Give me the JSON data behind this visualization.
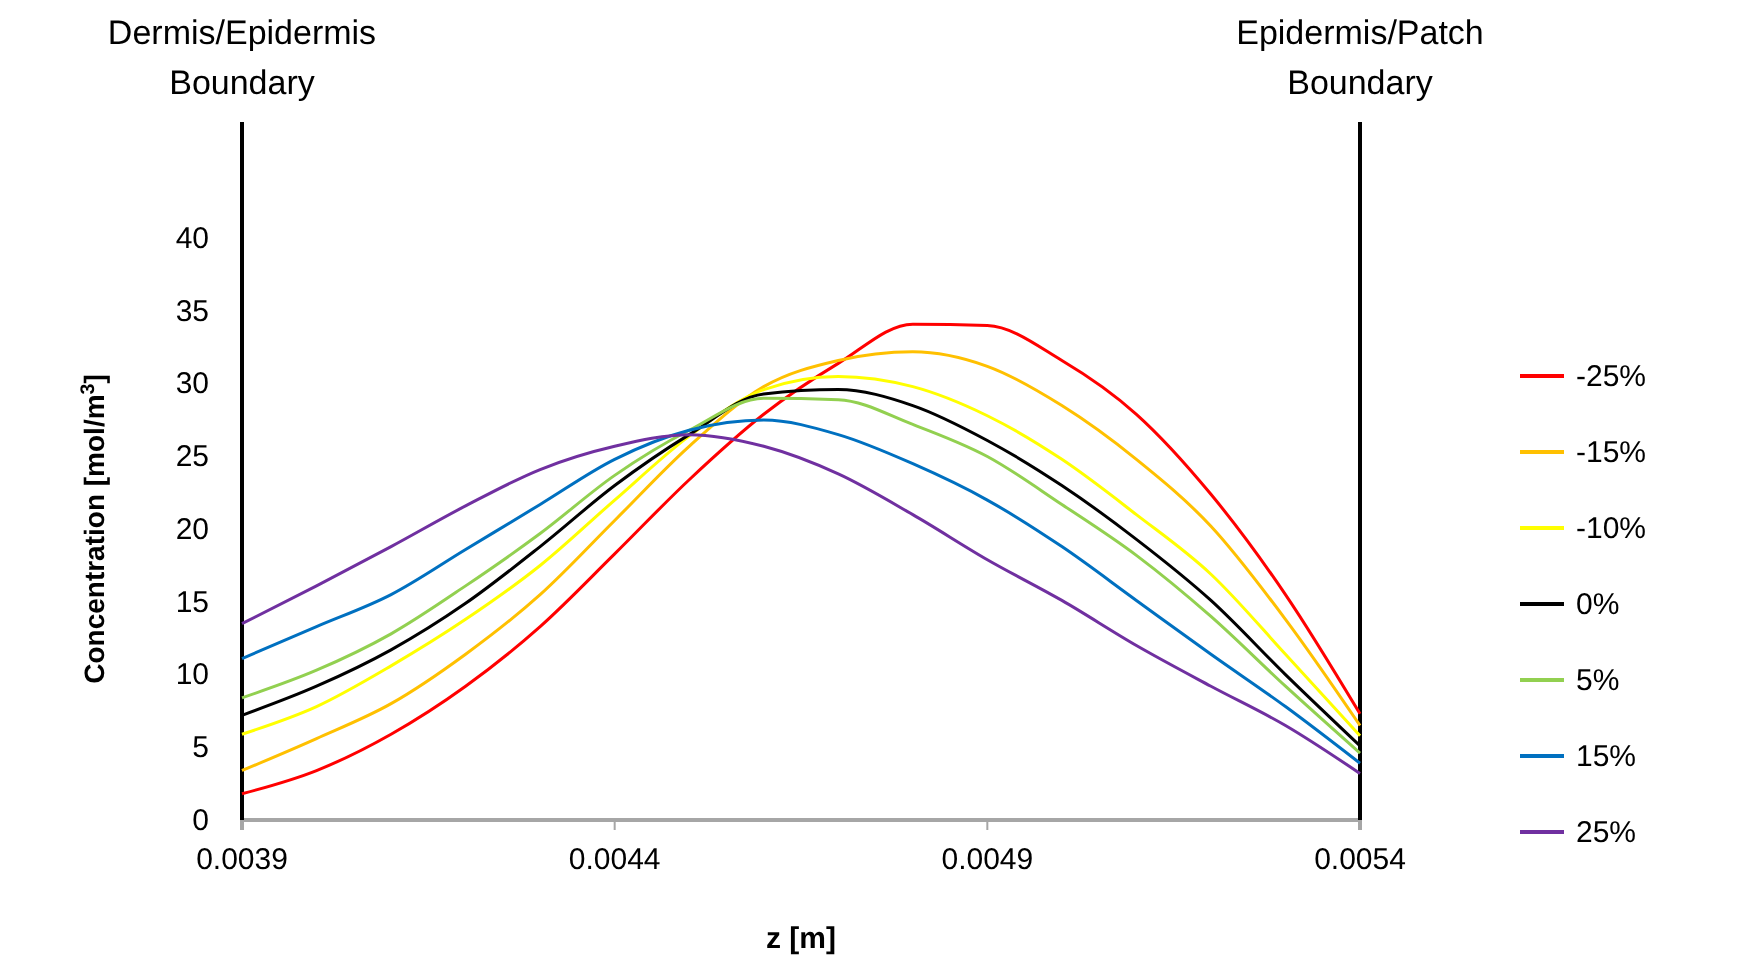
{
  "chart_data": {
    "type": "line",
    "xlabel": "z [m]",
    "ylabel": "Concentration [mol/m$^{3}$]",
    "x": [
      0.0039,
      0.004,
      0.0041,
      0.0042,
      0.0043,
      0.0044,
      0.0045,
      0.0046,
      0.0047,
      0.0048,
      0.0049,
      0.005,
      0.0051,
      0.0052,
      0.0053,
      0.0054
    ],
    "xlim": [
      0.0039,
      0.0054
    ],
    "xticks": [
      0.0039,
      0.0044,
      0.0049,
      0.0054
    ],
    "ylim": [
      0,
      48
    ],
    "yticks": [
      0,
      5,
      10,
      15,
      20,
      25,
      30,
      35,
      40
    ],
    "grid": false,
    "legend": "right",
    "marker": "none",
    "line_style": "solid",
    "annotations": [
      "Dermis/Epidermis Boundary"
    ],
    "ref_lines": [
      {
        "axis": "x",
        "value": 0.0054,
        "label": "Epidermis/Patch Boundary",
        "color": "#000000"
      }
    ],
    "series": [
      {
        "name": "-25%",
        "color": "#ff0000",
        "values": [
          1.8,
          3.4,
          5.9,
          9.2,
          13.3,
          18.3,
          23.4,
          27.9,
          31.4,
          34.1,
          34.0,
          31.6,
          27.9,
          22.4,
          15.5,
          7.3
        ]
      },
      {
        "name": "-15%",
        "color": "#ffc000",
        "values": [
          3.4,
          5.6,
          8.0,
          11.4,
          15.5,
          20.6,
          25.7,
          29.8,
          31.6,
          32.2,
          31.2,
          28.5,
          24.8,
          20.2,
          13.8,
          6.5
        ]
      },
      {
        "name": "-10%",
        "color": "#ffff00",
        "values": [
          5.9,
          7.8,
          10.6,
          13.8,
          17.5,
          22.0,
          26.4,
          29.6,
          30.5,
          29.8,
          27.8,
          24.8,
          21.0,
          16.9,
          11.4,
          5.8
        ]
      },
      {
        "name": "0%",
        "color": "#000000",
        "values": [
          7.2,
          9.2,
          11.7,
          14.9,
          18.8,
          23.0,
          26.5,
          29.3,
          29.6,
          28.5,
          26.1,
          23.0,
          19.3,
          15.1,
          10.0,
          5.1
        ]
      },
      {
        "name": "5%",
        "color": "#92d050",
        "values": [
          8.4,
          10.3,
          12.8,
          16.1,
          19.7,
          23.7,
          26.8,
          29.0,
          28.9,
          27.2,
          25.0,
          21.7,
          18.2,
          14.0,
          9.2,
          4.6
        ]
      },
      {
        "name": "15%",
        "color": "#0070c0",
        "values": [
          11.1,
          13.3,
          15.5,
          18.6,
          21.7,
          24.8,
          26.8,
          27.5,
          26.5,
          24.5,
          22.0,
          18.8,
          15.1,
          11.4,
          7.8,
          3.9
        ]
      },
      {
        "name": "25%",
        "color": "#7030a0",
        "values": [
          13.5,
          16.1,
          18.8,
          21.6,
          24.1,
          25.7,
          26.5,
          25.7,
          23.8,
          21.0,
          17.9,
          15.1,
          12.0,
          9.2,
          6.5,
          3.2
        ]
      }
    ]
  }
}
